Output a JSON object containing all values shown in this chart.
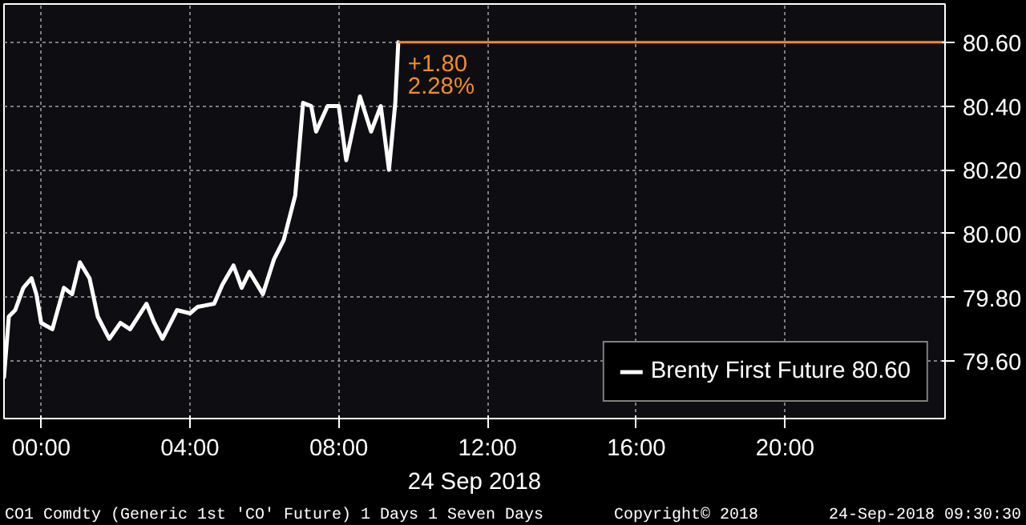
{
  "chart_data": {
    "type": "line",
    "xlabel": "24 Sep 2018",
    "x": [
      -1.0,
      -0.87,
      -0.7,
      -0.48,
      -0.26,
      -0.13,
      0,
      0.3,
      0.61,
      0.83,
      1.04,
      1.3,
      1.52,
      1.83,
      2.13,
      2.39,
      2.83,
      3.04,
      3.26,
      3.65,
      4.0,
      4.2,
      4.65,
      4.87,
      5.17,
      5.39,
      5.6,
      5.96,
      6.26,
      6.52,
      6.83,
      7.04,
      7.26,
      7.39,
      7.7,
      8.0,
      8.2,
      8.57,
      8.87,
      9.13,
      9.35,
      9.52,
      9.6
    ],
    "series": [
      {
        "name": "Brenty First Future 80.60",
        "color": "#ffffff",
        "values": [
          79.55,
          79.74,
          79.76,
          79.83,
          79.86,
          79.81,
          79.72,
          79.7,
          79.83,
          79.81,
          79.91,
          79.86,
          79.74,
          79.67,
          79.72,
          79.7,
          79.78,
          79.72,
          79.67,
          79.76,
          79.75,
          79.77,
          79.78,
          79.84,
          79.9,
          79.83,
          79.88,
          79.81,
          79.92,
          79.98,
          80.12,
          80.41,
          80.4,
          80.32,
          80.4,
          80.4,
          80.23,
          80.43,
          80.32,
          80.4,
          80.2,
          80.41,
          80.6
        ]
      }
    ],
    "xlim": [
      -1.0,
      24.3
    ],
    "ylim": [
      79.42,
      80.72
    ],
    "xticks": [
      {
        "value": 0,
        "label": "00:00"
      },
      {
        "value": 4,
        "label": "04:00"
      },
      {
        "value": 8,
        "label": "08:00"
      },
      {
        "value": 12,
        "label": "12:00"
      },
      {
        "value": 16,
        "label": "16:00"
      },
      {
        "value": 20,
        "label": "20:00"
      }
    ],
    "yticks": [
      {
        "value": 79.6,
        "label": "79.60"
      },
      {
        "value": 79.8,
        "label": "79.80"
      },
      {
        "value": 80.0,
        "label": "80.00"
      },
      {
        "value": 80.2,
        "label": "80.20"
      },
      {
        "value": 80.4,
        "label": "80.40"
      },
      {
        "value": 80.6,
        "label": "80.60"
      }
    ],
    "ref_lines": [
      {
        "axis": "y",
        "value": 80.6,
        "color": "#f08c28"
      }
    ],
    "annotations": [
      {
        "text": "+1.80",
        "x": 9.6,
        "y": 80.6
      },
      {
        "text": "2.28%",
        "x": 9.6,
        "y": 80.6
      },
      "CO1 Comdty (Generic 1st 'CO' Future) 1 Days 1 Seven Days",
      "Copyright© 2018",
      "24-Sep-2018 09:30:30"
    ],
    "grid": true,
    "legend": "bottom right",
    "line_style": "solid"
  }
}
